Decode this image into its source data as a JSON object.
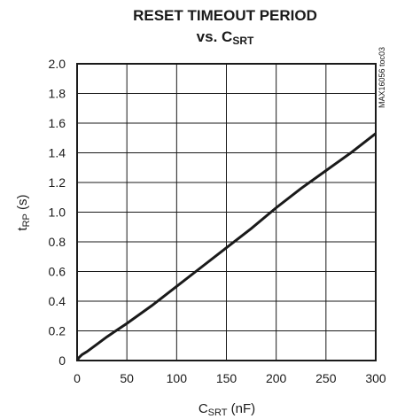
{
  "chart_data": {
    "type": "line",
    "title": "RESET TIMEOUT PERIOD",
    "subtitle_prefix": "vs. C",
    "subtitle_sub": "SRT",
    "xlabel_main": "C",
    "xlabel_sub": "SRT",
    "xlabel_unit": " (nF)",
    "ylabel_main": "t",
    "ylabel_sub": "RP",
    "ylabel_unit": " (s)",
    "watermark": "MAX16056 toc03",
    "xlim": [
      0,
      300
    ],
    "ylim": [
      0,
      2.0
    ],
    "x_ticks": [
      "0",
      "50",
      "100",
      "150",
      "200",
      "250",
      "300"
    ],
    "y_ticks": [
      "0",
      "0.2",
      "0.4",
      "0.6",
      "0.8",
      "1.0",
      "1.2",
      "1.4",
      "1.6",
      "1.8",
      "2.0"
    ],
    "grid": true,
    "series": [
      {
        "x": [
          0,
          2,
          5,
          10,
          20,
          30,
          50,
          75,
          100,
          125,
          150,
          175,
          200,
          225,
          250,
          275,
          300
        ],
        "y": [
          0.0,
          0.02,
          0.04,
          0.06,
          0.11,
          0.16,
          0.25,
          0.37,
          0.5,
          0.63,
          0.76,
          0.89,
          1.03,
          1.16,
          1.28,
          1.4,
          1.53
        ]
      }
    ]
  }
}
